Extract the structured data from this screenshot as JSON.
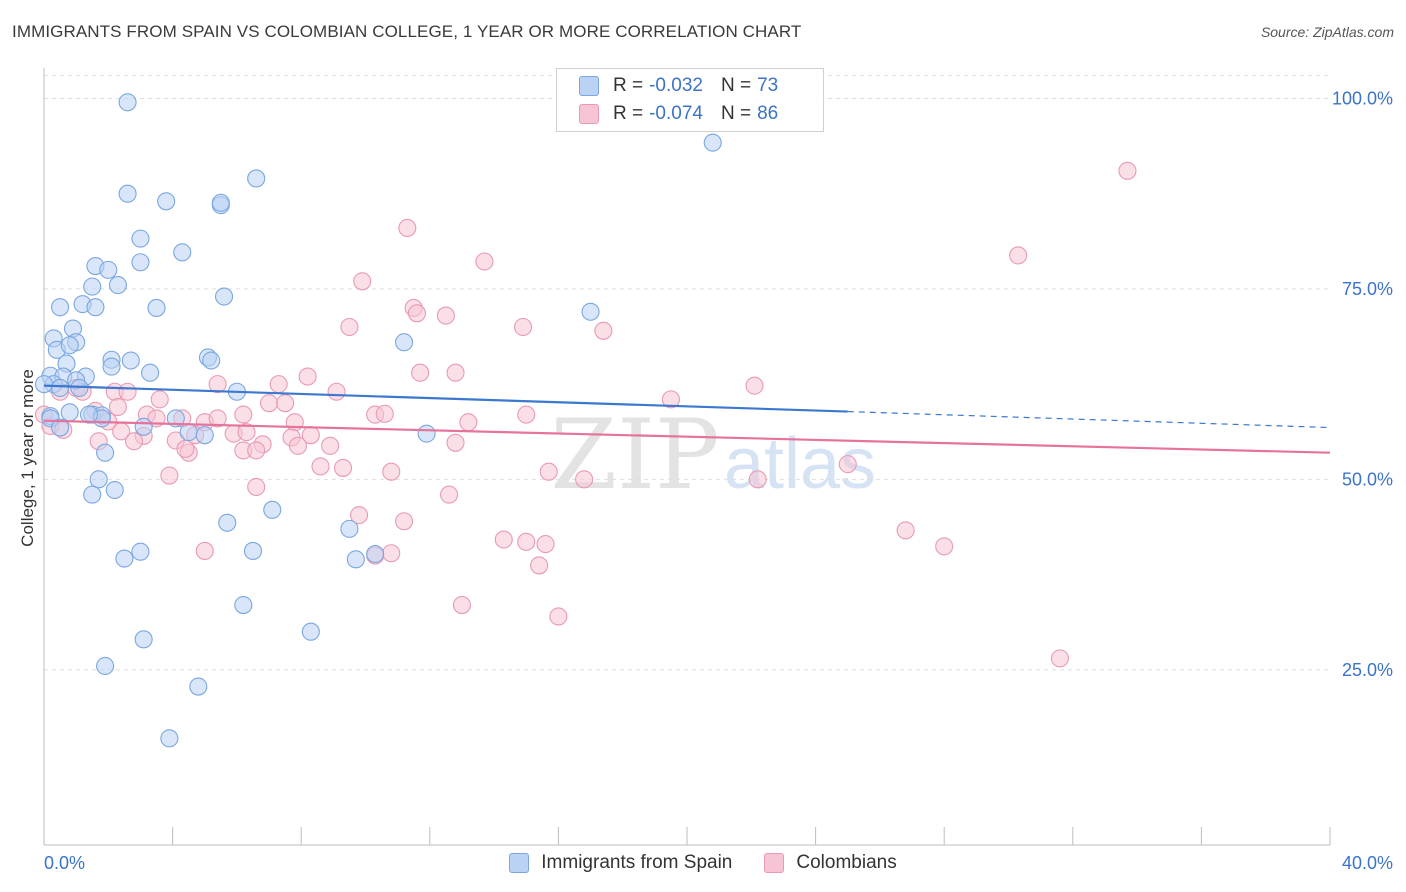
{
  "header": {
    "title": "IMMIGRANTS FROM SPAIN VS COLOMBIAN COLLEGE, 1 YEAR OR MORE CORRELATION CHART",
    "source": "Source: ZipAtlas.com"
  },
  "watermark": {
    "zip": "ZIP",
    "atlas": "atlas"
  },
  "legend": {
    "series": [
      {
        "name": "Immigrants from Spain",
        "r_label": "R =",
        "r_value": "-0.032",
        "n_label": "N =",
        "n_value": "73",
        "color": "#7aa7e0",
        "fill": "#bad2f4"
      },
      {
        "name": "Colombians",
        "r_label": "R =",
        "r_value": "-0.074",
        "n_label": "N =",
        "n_value": "86",
        "color": "#e89ab4",
        "fill": "#f6c4d4"
      }
    ]
  },
  "chart_data": {
    "type": "scatter",
    "title": "IMMIGRANTS FROM SPAIN VS COLOMBIAN COLLEGE, 1 YEAR OR MORE CORRELATION CHART",
    "xlabel": "",
    "ylabel": "College, 1 year or more",
    "xlim": [
      0,
      40
    ],
    "ylim": [
      2,
      104
    ],
    "x_tick_labels": [
      "0.0%",
      "40.0%"
    ],
    "y_ticks": [
      25,
      50,
      75,
      100
    ],
    "y_tick_labels": [
      "25.0%",
      "50.0%",
      "75.0%",
      "100.0%"
    ],
    "grid": true,
    "colors": {
      "blue": "#3b78d0",
      "pink": "#e5739b",
      "tick_label": "#3b73c8"
    },
    "series": [
      {
        "name": "Immigrants from Spain",
        "trend": {
          "x0": 0,
          "y0": 62.3,
          "x1": 25,
          "y1": 58.9,
          "dash_x1": 40,
          "dash_y1": 56.8
        },
        "points": [
          [
            2.6,
            99.5
          ],
          [
            6.6,
            89.5
          ],
          [
            2.6,
            87.5
          ],
          [
            3.8,
            86.5
          ],
          [
            5.5,
            86.0
          ],
          [
            5.5,
            86.3
          ],
          [
            3.0,
            81.6
          ],
          [
            4.3,
            79.8
          ],
          [
            1.6,
            78.0
          ],
          [
            2.0,
            77.5
          ],
          [
            3.0,
            78.5
          ],
          [
            2.3,
            75.5
          ],
          [
            5.6,
            74.0
          ],
          [
            1.5,
            75.3
          ],
          [
            1.2,
            73.0
          ],
          [
            1.6,
            72.6
          ],
          [
            0.5,
            72.6
          ],
          [
            3.5,
            72.5
          ],
          [
            17.0,
            72.0
          ],
          [
            0.9,
            69.8
          ],
          [
            0.3,
            68.5
          ],
          [
            1.0,
            68.0
          ],
          [
            0.4,
            67.0
          ],
          [
            0.8,
            67.6
          ],
          [
            11.2,
            68.0
          ],
          [
            5.1,
            66.0
          ],
          [
            5.2,
            65.6
          ],
          [
            2.1,
            65.7
          ],
          [
            2.7,
            65.6
          ],
          [
            2.1,
            64.8
          ],
          [
            0.7,
            65.2
          ],
          [
            3.3,
            64.0
          ],
          [
            0.2,
            63.6
          ],
          [
            1.3,
            63.5
          ],
          [
            0.6,
            63.5
          ],
          [
            1.0,
            63.0
          ],
          [
            0.3,
            62.5
          ],
          [
            0.5,
            62.0
          ],
          [
            0.0,
            62.5
          ],
          [
            6.0,
            61.5
          ],
          [
            1.1,
            62.0
          ],
          [
            1.5,
            58.5
          ],
          [
            0.2,
            58.3
          ],
          [
            1.8,
            58.4
          ],
          [
            1.8,
            58.0
          ],
          [
            4.1,
            58.0
          ],
          [
            0.2,
            58.0
          ],
          [
            0.5,
            56.8
          ],
          [
            4.5,
            56.2
          ],
          [
            5.0,
            55.8
          ],
          [
            11.9,
            56.0
          ],
          [
            1.9,
            53.5
          ],
          [
            1.7,
            50.0
          ],
          [
            2.2,
            48.6
          ],
          [
            1.5,
            48.0
          ],
          [
            7.1,
            46.0
          ],
          [
            5.7,
            44.3
          ],
          [
            9.5,
            43.5
          ],
          [
            6.5,
            40.6
          ],
          [
            3.0,
            40.5
          ],
          [
            2.5,
            39.6
          ],
          [
            9.7,
            39.5
          ],
          [
            10.3,
            40.2
          ],
          [
            6.2,
            33.5
          ],
          [
            8.3,
            30.0
          ],
          [
            3.1,
            29.0
          ],
          [
            1.9,
            25.5
          ],
          [
            4.8,
            22.8
          ],
          [
            3.9,
            16.0
          ],
          [
            20.8,
            94.2
          ],
          [
            3.1,
            56.9
          ],
          [
            0.8,
            58.8
          ],
          [
            1.4,
            58.5
          ]
        ]
      },
      {
        "name": "Colombians",
        "trend": {
          "x0": 0,
          "y0": 57.7,
          "x1": 40,
          "y1": 53.5
        },
        "points": [
          [
            33.7,
            90.5
          ],
          [
            11.3,
            83.0
          ],
          [
            13.7,
            78.6
          ],
          [
            30.3,
            79.4
          ],
          [
            9.9,
            76.0
          ],
          [
            11.5,
            72.5
          ],
          [
            11.6,
            71.8
          ],
          [
            12.5,
            71.5
          ],
          [
            9.5,
            70.0
          ],
          [
            14.9,
            70.0
          ],
          [
            17.4,
            69.5
          ],
          [
            11.7,
            64.0
          ],
          [
            12.8,
            64.0
          ],
          [
            8.2,
            63.5
          ],
          [
            7.3,
            62.5
          ],
          [
            5.4,
            62.5
          ],
          [
            22.1,
            62.3
          ],
          [
            1.0,
            62.0
          ],
          [
            1.2,
            61.5
          ],
          [
            0.5,
            61.5
          ],
          [
            2.2,
            61.5
          ],
          [
            2.6,
            61.5
          ],
          [
            3.6,
            60.5
          ],
          [
            9.1,
            61.5
          ],
          [
            19.5,
            60.5
          ],
          [
            7.0,
            60.0
          ],
          [
            7.5,
            60.0
          ],
          [
            2.3,
            59.5
          ],
          [
            10.3,
            58.5
          ],
          [
            10.6,
            58.6
          ],
          [
            15.0,
            58.5
          ],
          [
            1.6,
            59.0
          ],
          [
            3.2,
            58.5
          ],
          [
            3.5,
            58.0
          ],
          [
            4.3,
            58.0
          ],
          [
            5.0,
            57.5
          ],
          [
            5.4,
            58.0
          ],
          [
            6.2,
            58.5
          ],
          [
            7.8,
            57.5
          ],
          [
            13.2,
            57.5
          ],
          [
            2.0,
            57.6
          ],
          [
            0.2,
            57.0
          ],
          [
            0.6,
            56.5
          ],
          [
            2.4,
            56.3
          ],
          [
            3.1,
            55.7
          ],
          [
            4.7,
            55.8
          ],
          [
            5.9,
            56.0
          ],
          [
            6.3,
            56.2
          ],
          [
            8.3,
            55.8
          ],
          [
            7.7,
            55.5
          ],
          [
            4.1,
            55.1
          ],
          [
            1.7,
            55.0
          ],
          [
            2.8,
            55.0
          ],
          [
            6.8,
            54.6
          ],
          [
            7.9,
            54.4
          ],
          [
            8.9,
            54.4
          ],
          [
            12.8,
            54.8
          ],
          [
            4.5,
            53.5
          ],
          [
            6.2,
            53.8
          ],
          [
            6.6,
            53.8
          ],
          [
            4.4,
            54.0
          ],
          [
            8.6,
            51.7
          ],
          [
            9.3,
            51.5
          ],
          [
            10.8,
            51.0
          ],
          [
            15.7,
            51.0
          ],
          [
            16.8,
            50.0
          ],
          [
            3.9,
            50.5
          ],
          [
            22.2,
            50.0
          ],
          [
            25.0,
            52.0
          ],
          [
            6.6,
            49.0
          ],
          [
            12.6,
            48.0
          ],
          [
            9.8,
            45.3
          ],
          [
            11.2,
            44.5
          ],
          [
            26.8,
            43.3
          ],
          [
            14.3,
            42.1
          ],
          [
            15.0,
            41.8
          ],
          [
            15.6,
            41.5
          ],
          [
            28.0,
            41.2
          ],
          [
            5.0,
            40.6
          ],
          [
            10.3,
            40.0
          ],
          [
            10.8,
            40.3
          ],
          [
            15.4,
            38.7
          ],
          [
            13.0,
            33.5
          ],
          [
            16.0,
            32.0
          ],
          [
            31.6,
            26.5
          ],
          [
            0.0,
            58.5
          ]
        ]
      }
    ]
  },
  "y_axis_title": "College, 1 year or more"
}
